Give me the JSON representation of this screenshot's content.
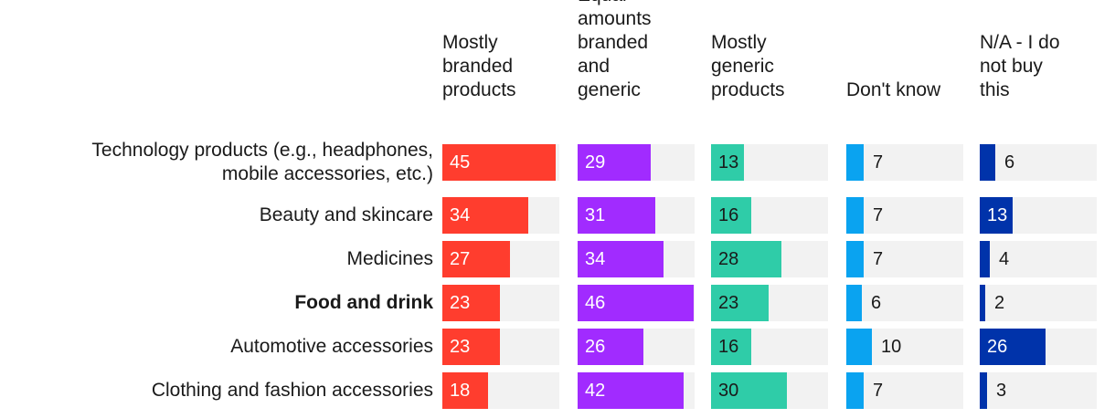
{
  "chart_data": {
    "type": "bar",
    "title": "",
    "xlabel": "",
    "ylabel": "",
    "xlim": [
      0,
      45
    ],
    "categories": [
      "Technology products (e.g., headphones,\nmobile accessories, etc.)",
      "Beauty and skincare",
      "Medicines",
      "Food and drink",
      "Automotive accessories",
      "Clothing and fashion accessories"
    ],
    "highlight_category": "Food and drink",
    "series": [
      {
        "name": "Mostly\nbranded\nproducts",
        "color": "#ff3d2e",
        "values": [
          45,
          34,
          27,
          23,
          23,
          18
        ]
      },
      {
        "name": "Equal\namounts\nbranded\nand\ngeneric",
        "color": "#a12bff",
        "values": [
          29,
          31,
          34,
          46,
          26,
          42
        ]
      },
      {
        "name": "Mostly\ngeneric\nproducts",
        "color": "#2fcca8",
        "values": [
          13,
          16,
          28,
          23,
          16,
          30
        ]
      },
      {
        "name": "Don't know",
        "color": "#0aa3f0",
        "values": [
          7,
          7,
          7,
          6,
          10,
          7
        ]
      },
      {
        "name": "N/A - I do\nnot buy\nthis",
        "color": "#0033aa",
        "values": [
          6,
          13,
          4,
          2,
          26,
          3
        ]
      }
    ]
  }
}
